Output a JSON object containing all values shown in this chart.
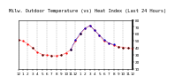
{
  "title": "Milw. Outdoor Temperature (vs) Heat Index (Last 24 Hours)",
  "background_color": "#ffffff",
  "plot_bg_color": "#ffffff",
  "grid_color": "#888888",
  "title_fontsize": 3.8,
  "tick_fontsize": 3.0,
  "ylim": [
    10,
    80
  ],
  "yticks": [
    10,
    20,
    30,
    40,
    50,
    60,
    70,
    80
  ],
  "ytick_labels": [
    "10",
    "20",
    "30",
    "40",
    "50",
    "60",
    "70",
    "80"
  ],
  "time_labels": [
    "12",
    "1",
    "2",
    "3",
    "4",
    "5",
    "6",
    "7",
    "8",
    "9",
    "10",
    "11",
    "12",
    "1",
    "2",
    "3",
    "4",
    "5",
    "6",
    "7",
    "8",
    "9",
    "10",
    "11",
    "12"
  ],
  "temp_x": [
    0,
    1,
    2,
    3,
    4,
    5,
    6,
    7,
    8,
    9,
    10,
    11,
    12,
    13,
    14,
    15,
    16,
    17,
    18,
    19,
    20,
    21,
    22,
    23,
    24
  ],
  "temp_y": [
    52,
    50,
    46,
    40,
    34,
    31,
    30,
    29,
    29,
    30,
    33,
    38,
    50,
    60,
    68,
    72,
    65,
    58,
    50,
    47,
    44,
    42,
    41,
    40,
    39
  ],
  "heat_x": [
    11,
    12,
    13,
    14,
    15,
    16,
    17,
    18,
    19,
    20
  ],
  "heat_y": [
    38,
    52,
    61,
    68,
    72,
    65,
    58,
    52,
    47,
    45
  ],
  "black_x": [
    0,
    3,
    5,
    7,
    9,
    11,
    13,
    21,
    22,
    23,
    24
  ],
  "black_y": [
    52,
    40,
    31,
    29,
    30,
    38,
    60,
    42,
    41,
    40,
    39
  ],
  "temp_color": "#ff0000",
  "heat_color": "#0000cc",
  "black_color": "#000000",
  "line_width": 0.5,
  "marker_size": 1.2,
  "black_marker_size": 1.0
}
